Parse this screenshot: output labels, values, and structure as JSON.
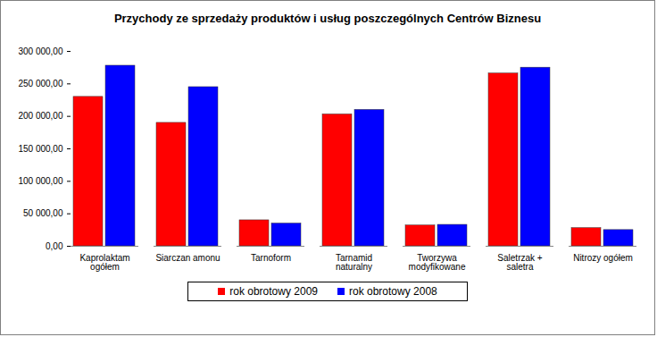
{
  "chart_data": {
    "type": "bar",
    "title": "Przychody ze sprzedaży produktów i usług poszczególnych Centrów Biznesu",
    "categories": [
      "Kaprolaktam ogółem",
      "Siarczan amonu",
      "Tarnoform",
      "Tarnamid naturalny",
      "Tworzywa modyfikowane",
      "Saletrzak + saletra",
      "Nitrozy ogółem"
    ],
    "series": [
      {
        "name": "rok obrotowy 2009",
        "color": "#ff0000",
        "values": [
          230000,
          190000,
          40000,
          203000,
          32000,
          266000,
          28000
        ]
      },
      {
        "name": "rok obrotowy 2008",
        "color": "#0000ff",
        "values": [
          278000,
          245000,
          35000,
          210000,
          33000,
          275000,
          25000
        ]
      }
    ],
    "ylim": [
      0,
      300000
    ],
    "yticks": [
      {
        "value": 0,
        "label": "0,00"
      },
      {
        "value": 50000,
        "label": "50 000,00"
      },
      {
        "value": 100000,
        "label": "100 000,00"
      },
      {
        "value": 150000,
        "label": "150 000,00"
      },
      {
        "value": 200000,
        "label": "200 000,00"
      },
      {
        "value": 250000,
        "label": "250 000,00"
      },
      {
        "value": 300000,
        "label": "300 000,00"
      }
    ],
    "grid": false,
    "legend": "bottom"
  }
}
